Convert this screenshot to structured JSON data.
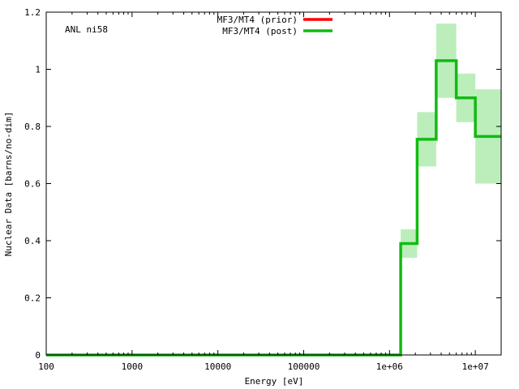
{
  "chart_data": {
    "type": "line",
    "step": true,
    "annotation": "ANL ni58",
    "xlabel": "Energy [eV]",
    "ylabel": "Nuclear Data [barns/no-dim]",
    "xscale": "log",
    "xlim": [
      100,
      20000000
    ],
    "ylim": [
      0,
      1.2
    ],
    "xticks": [
      {
        "value": 100,
        "label": "100"
      },
      {
        "value": 1000,
        "label": "1000"
      },
      {
        "value": 10000,
        "label": "10000"
      },
      {
        "value": 100000,
        "label": "100000"
      },
      {
        "value": 1000000,
        "label": "1e+06"
      },
      {
        "value": 10000000,
        "label": "1e+07"
      }
    ],
    "yticks": [
      {
        "value": 0,
        "label": "0"
      },
      {
        "value": 0.2,
        "label": "0.2"
      },
      {
        "value": 0.4,
        "label": "0.4"
      },
      {
        "value": 0.6,
        "label": "0.6"
      },
      {
        "value": 0.8,
        "label": "0.8"
      },
      {
        "value": 1,
        "label": "1"
      },
      {
        "value": 1.2,
        "label": "1.2"
      }
    ],
    "legend_position": "top-center",
    "series": [
      {
        "name": "MF3/MT4 (prior)",
        "color": "#ff0000",
        "bins": []
      },
      {
        "name": "MF3/MT4 (post)",
        "color": "#11bb11",
        "band_color": "#bbeebb",
        "bins": [
          {
            "x0": 100,
            "x1": 1350000,
            "y": 0.0,
            "err": 0.0
          },
          {
            "x0": 1350000,
            "x1": 2100000,
            "y": 0.39,
            "err": 0.05
          },
          {
            "x0": 2100000,
            "x1": 3500000,
            "y": 0.755,
            "err": 0.095
          },
          {
            "x0": 3500000,
            "x1": 6000000,
            "y": 1.03,
            "err": 0.13
          },
          {
            "x0": 6000000,
            "x1": 10000000,
            "y": 0.9,
            "err": 0.085
          },
          {
            "x0": 10000000,
            "x1": 20000000,
            "y": 0.765,
            "err": 0.165
          }
        ]
      }
    ]
  }
}
